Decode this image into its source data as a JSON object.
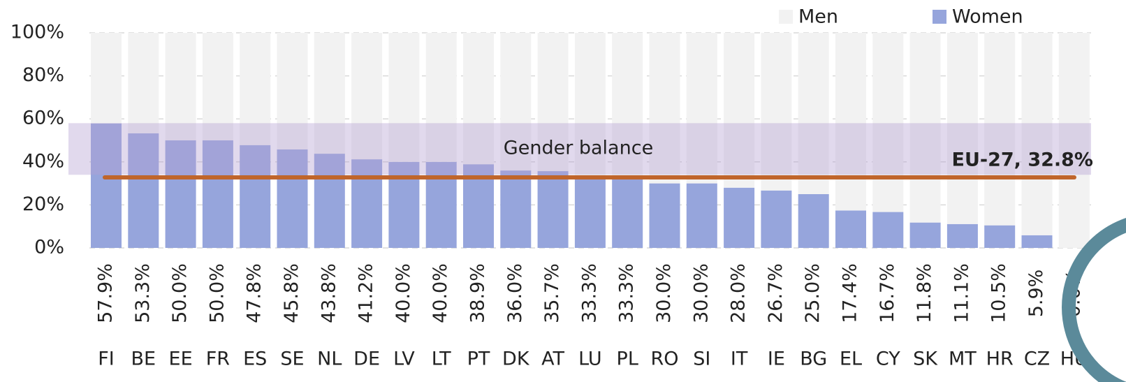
{
  "chart_data": {
    "type": "stacked_bar",
    "categories": [
      "FI",
      "BE",
      "EE",
      "FR",
      "ES",
      "SE",
      "NL",
      "DE",
      "LV",
      "LT",
      "PT",
      "DK",
      "AT",
      "LU",
      "PL",
      "RO",
      "SI",
      "IT",
      "IE",
      "BG",
      "EL",
      "CY",
      "SK",
      "MT",
      "HR",
      "CZ",
      "HU"
    ],
    "series": [
      {
        "name": "Men",
        "color": "#f2f2f2",
        "values": [
          42.1,
          46.7,
          50.0,
          50.0,
          52.2,
          54.2,
          56.2,
          58.8,
          60.0,
          60.0,
          61.1,
          64.0,
          64.3,
          66.7,
          66.7,
          70.0,
          70.0,
          72.0,
          73.3,
          75.0,
          82.6,
          83.3,
          88.2,
          88.9,
          89.5,
          94.1,
          100.0
        ]
      },
      {
        "name": "Women",
        "color": "#96a5dc",
        "values": [
          57.9,
          53.3,
          50.0,
          50.0,
          47.8,
          45.8,
          43.8,
          41.2,
          40.0,
          40.0,
          38.9,
          36.0,
          35.7,
          33.3,
          33.3,
          30.0,
          30.0,
          28.0,
          26.7,
          25.0,
          17.4,
          16.7,
          11.8,
          11.1,
          10.5,
          5.9,
          0.0
        ],
        "value_labels": [
          "57.9%",
          "53.3%",
          "50.0%",
          "50.0%",
          "47.8%",
          "45.8%",
          "43.8%",
          "41.2%",
          "40.0%",
          "40.0%",
          "38.9%",
          "36.0%",
          "35.7%",
          "33.3%",
          "33.3%",
          "30.0%",
          "30.0%",
          "28.0%",
          "26.7%",
          "25.0%",
          "17.4%",
          "16.7%",
          "11.8%",
          "11.1%",
          "10.5%",
          "5.9%",
          "0.0%"
        ]
      }
    ],
    "ylim": [
      0,
      100
    ],
    "yticks": [
      {
        "value": 0,
        "label": "0%"
      },
      {
        "value": 20,
        "label": "20%"
      },
      {
        "value": 40,
        "label": "40%"
      },
      {
        "value": 60,
        "label": "60%"
      },
      {
        "value": 80,
        "label": "80%"
      },
      {
        "value": 100,
        "label": "100%"
      }
    ],
    "grid": true,
    "legend": "top-right",
    "band": {
      "range": [
        34,
        58
      ],
      "label": "Gender balance",
      "color": "#b4a0d2"
    },
    "reference_line": {
      "value": 32.8,
      "label": "EU-27, 32.8%",
      "color": "#c0652b"
    }
  }
}
